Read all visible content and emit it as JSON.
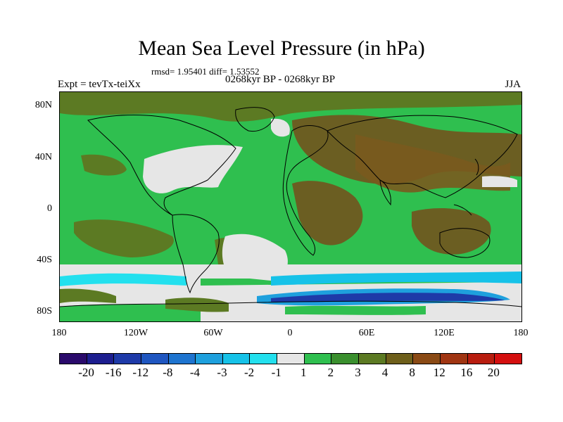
{
  "title": "Mean Sea Level Pressure (in hPa)",
  "stats": "rmsd= 1.95401 diff= 1.53552",
  "left_label": "Expt = tevTx-teiXx",
  "center_label": "0268kyr BP - 0268kyr BP",
  "right_label": "JJA",
  "lat_ticks": [
    "80N",
    "40N",
    "0",
    "40S",
    "80S"
  ],
  "lon_ticks": [
    "180",
    "120W",
    "60W",
    "0",
    "60E",
    "120E",
    "180"
  ],
  "colorbar": {
    "colors": [
      "#2a0a6b",
      "#1d1e8f",
      "#1e3aa8",
      "#1f56c0",
      "#1e74cf",
      "#1ea0dd",
      "#16c2e8",
      "#23e0ee",
      "#e6e6e6",
      "#2fbf4f",
      "#3a8f2e",
      "#5c7a23",
      "#6e5f1b",
      "#8a4a15",
      "#a03512",
      "#b81d0f",
      "#d40f0f"
    ],
    "labels": [
      "-20",
      "-16",
      "-12",
      "-8",
      "-4",
      "-3",
      "-2",
      "-1",
      "1",
      "2",
      "3",
      "4",
      "8",
      "12",
      "16",
      "20"
    ]
  },
  "legend_colors": {
    "white": "#e6e6e6",
    "green": "#2fbf4f",
    "olive": "#5c7a23",
    "brown": "#7a5a1e",
    "cyan": "#23e0ee",
    "light_blue": "#1ea0dd",
    "dark_blue": "#1e3aa8"
  }
}
